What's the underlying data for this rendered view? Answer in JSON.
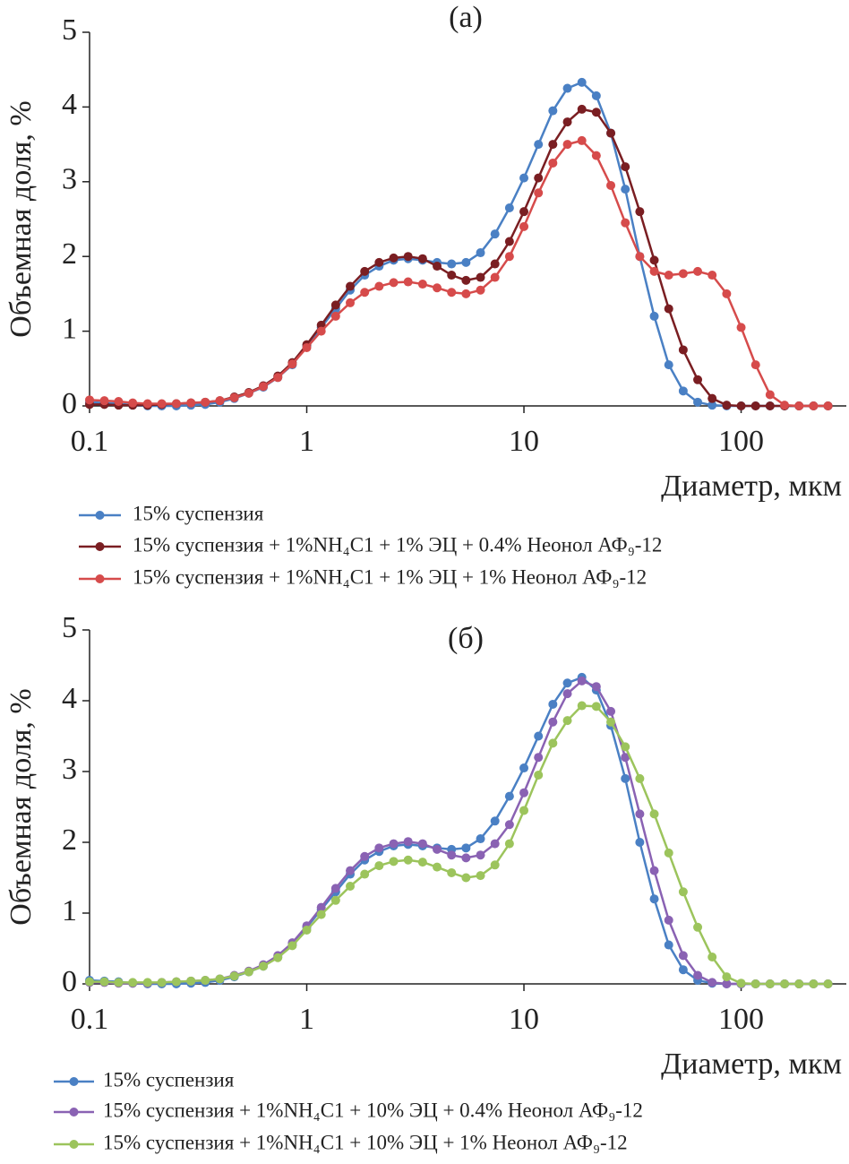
{
  "chart_data": [
    {
      "type": "line",
      "title": "(а)",
      "xlabel": "Диаметр, мкм",
      "ylabel": "Объемная доля, %",
      "xscale": "log",
      "xlim": [
        0.1,
        305
      ],
      "ylim": [
        0,
        5
      ],
      "xticks": [
        0.1,
        1,
        10,
        100
      ],
      "yticks": [
        0,
        1,
        2,
        3,
        4,
        5
      ],
      "x": [
        0.1,
        0.117,
        0.136,
        0.158,
        0.185,
        0.215,
        0.251,
        0.293,
        0.341,
        0.398,
        0.464,
        0.541,
        0.631,
        0.736,
        0.858,
        1,
        1.166,
        1.359,
        1.585,
        1.848,
        2.154,
        2.512,
        2.929,
        3.415,
        3.981,
        4.642,
        5.412,
        6.31,
        7.356,
        8.577,
        10,
        11.66,
        13.59,
        15.85,
        18.48,
        21.54,
        25.12,
        29.29,
        34.15,
        39.81,
        46.42,
        54.12,
        63.1,
        73.56,
        85.77,
        100,
        116.6,
        135.9,
        158.5,
        184.8,
        215.4,
        251.2
      ],
      "series": [
        {
          "name": "15% суспензия",
          "color": "#4a80c4",
          "values": [
            0.05,
            0.04,
            0.03,
            0.01,
            0,
            0,
            0,
            0.01,
            0.02,
            0.05,
            0.1,
            0.17,
            0.25,
            0.38,
            0.55,
            0.8,
            1.05,
            1.3,
            1.55,
            1.75,
            1.87,
            1.95,
            1.97,
            1.95,
            1.92,
            1.9,
            1.92,
            2.05,
            2.3,
            2.65,
            3.05,
            3.5,
            3.95,
            4.25,
            4.33,
            4.15,
            3.65,
            2.9,
            2.0,
            1.2,
            0.55,
            0.2,
            0.05,
            0.01,
            0,
            0,
            0,
            0,
            0,
            0,
            0,
            0
          ]
        },
        {
          "name": "15% суспензия + 1%NH₄C1 + 1% ЭЦ + 0.4% Неонол АФ₉-12",
          "color": "#7a1e22",
          "values": [
            0.02,
            0.02,
            0.01,
            0.01,
            0.01,
            0.02,
            0.03,
            0.04,
            0.05,
            0.07,
            0.12,
            0.18,
            0.27,
            0.4,
            0.58,
            0.82,
            1.08,
            1.35,
            1.6,
            1.8,
            1.92,
            1.98,
            2.0,
            1.97,
            1.87,
            1.75,
            1.68,
            1.72,
            1.9,
            2.2,
            2.6,
            3.05,
            3.5,
            3.8,
            3.97,
            3.93,
            3.65,
            3.2,
            2.6,
            1.95,
            1.3,
            0.75,
            0.35,
            0.1,
            0.01,
            0,
            0,
            0,
            0,
            0,
            0,
            0
          ]
        },
        {
          "name": "15% суспензия + 1%NH₄C1 + 1% ЭЦ + 1% Неонол АФ₉-12",
          "color": "#d64b4b",
          "values": [
            0.08,
            0.07,
            0.06,
            0.04,
            0.03,
            0.03,
            0.03,
            0.04,
            0.05,
            0.07,
            0.11,
            0.17,
            0.26,
            0.38,
            0.56,
            0.78,
            1.0,
            1.2,
            1.38,
            1.52,
            1.6,
            1.65,
            1.66,
            1.63,
            1.58,
            1.52,
            1.5,
            1.55,
            1.72,
            2.0,
            2.4,
            2.85,
            3.25,
            3.5,
            3.55,
            3.35,
            2.95,
            2.45,
            2.0,
            1.8,
            1.75,
            1.77,
            1.8,
            1.75,
            1.5,
            1.05,
            0.55,
            0.15,
            0.01,
            0,
            0,
            0
          ]
        }
      ]
    },
    {
      "type": "line",
      "title": "(б)",
      "xlabel": "Диаметр, мкм",
      "ylabel": "Объемная доля, %",
      "xscale": "log",
      "xlim": [
        0.1,
        305
      ],
      "ylim": [
        0,
        5
      ],
      "xticks": [
        0.1,
        1,
        10,
        100
      ],
      "yticks": [
        0,
        1,
        2,
        3,
        4,
        5
      ],
      "x": [
        0.1,
        0.117,
        0.136,
        0.158,
        0.185,
        0.215,
        0.251,
        0.293,
        0.341,
        0.398,
        0.464,
        0.541,
        0.631,
        0.736,
        0.858,
        1,
        1.166,
        1.359,
        1.585,
        1.848,
        2.154,
        2.512,
        2.929,
        3.415,
        3.981,
        4.642,
        5.412,
        6.31,
        7.356,
        8.577,
        10,
        11.66,
        13.59,
        15.85,
        18.48,
        21.54,
        25.12,
        29.29,
        34.15,
        39.81,
        46.42,
        54.12,
        63.1,
        73.56,
        85.77,
        100,
        116.6,
        135.9,
        158.5,
        184.8,
        215.4,
        251.2
      ],
      "series": [
        {
          "name": "15% суспензия",
          "color": "#4a80c4",
          "values": [
            0.05,
            0.04,
            0.03,
            0.01,
            0,
            0,
            0,
            0.01,
            0.02,
            0.05,
            0.1,
            0.17,
            0.25,
            0.38,
            0.55,
            0.8,
            1.05,
            1.3,
            1.55,
            1.75,
            1.87,
            1.95,
            1.97,
            1.95,
            1.92,
            1.9,
            1.92,
            2.05,
            2.3,
            2.65,
            3.05,
            3.5,
            3.95,
            4.25,
            4.33,
            4.15,
            3.65,
            2.9,
            2.0,
            1.2,
            0.55,
            0.2,
            0.05,
            0.01,
            0,
            0,
            0,
            0,
            0,
            0,
            0,
            0
          ]
        },
        {
          "name": "15% суспензия + 1%NH₄C1 + 10% ЭЦ + 0.4% Неонол АФ₉-12",
          "color": "#8a62b3",
          "values": [
            0.02,
            0.02,
            0.01,
            0.01,
            0.01,
            0.02,
            0.03,
            0.04,
            0.05,
            0.07,
            0.12,
            0.18,
            0.27,
            0.4,
            0.58,
            0.82,
            1.08,
            1.35,
            1.6,
            1.8,
            1.92,
            1.98,
            2.01,
            1.98,
            1.9,
            1.82,
            1.78,
            1.82,
            1.98,
            2.25,
            2.7,
            3.2,
            3.7,
            4.1,
            4.28,
            4.2,
            3.85,
            3.2,
            2.4,
            1.6,
            0.9,
            0.4,
            0.12,
            0.02,
            0,
            0,
            0,
            0,
            0,
            0,
            0,
            0
          ]
        },
        {
          "name": "15% суспензия + 1%NH₄C1 + 10% ЭЦ + 1% Неонол АФ₉-12",
          "color": "#9cc45c",
          "values": [
            0.03,
            0.03,
            0.02,
            0.02,
            0.02,
            0.02,
            0.03,
            0.04,
            0.05,
            0.07,
            0.11,
            0.17,
            0.25,
            0.37,
            0.54,
            0.76,
            0.98,
            1.18,
            1.38,
            1.55,
            1.67,
            1.73,
            1.75,
            1.72,
            1.65,
            1.57,
            1.5,
            1.53,
            1.68,
            1.98,
            2.45,
            2.95,
            3.4,
            3.72,
            3.93,
            3.92,
            3.7,
            3.35,
            2.9,
            2.4,
            1.85,
            1.3,
            0.8,
            0.38,
            0.1,
            0.01,
            0,
            0,
            0,
            0,
            0,
            0
          ]
        }
      ]
    }
  ]
}
